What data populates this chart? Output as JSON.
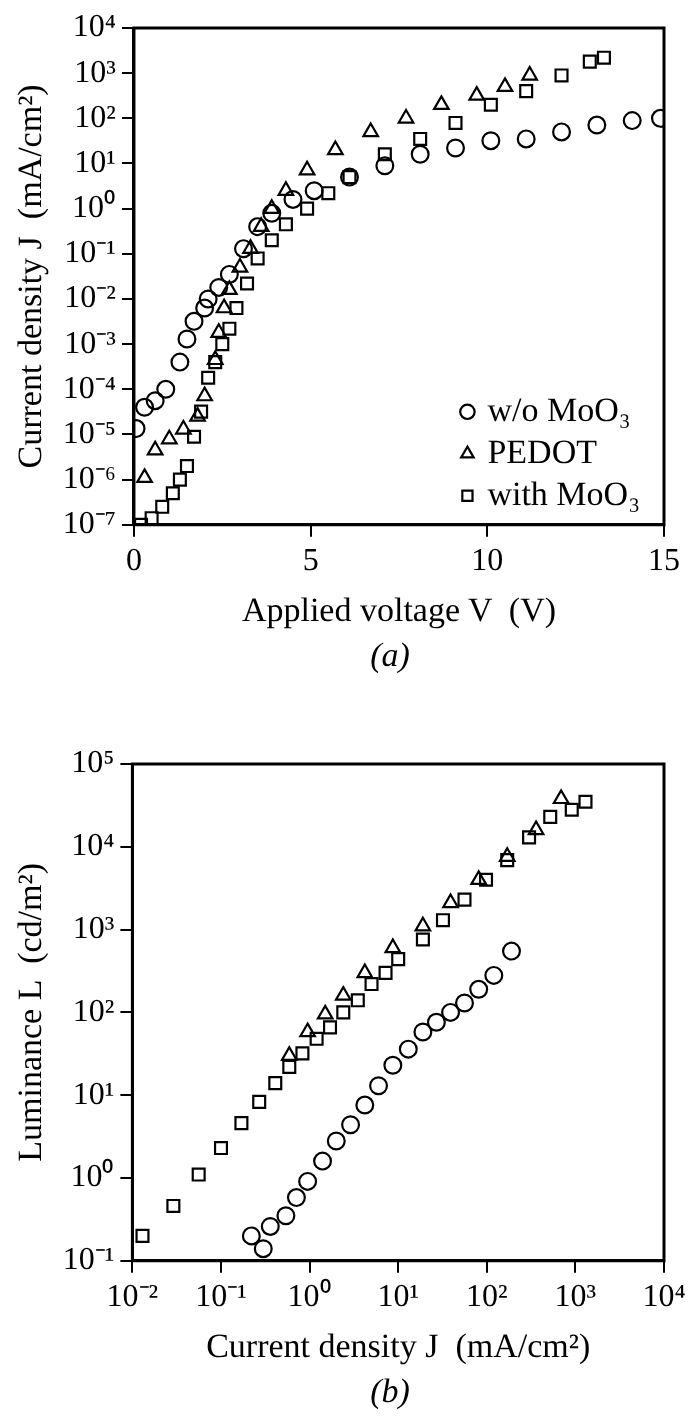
{
  "chart_data": [
    {
      "type": "scatter",
      "xlabel": "Applied voltage V  (V)",
      "ylabel": "Current density J  (mA/cm²)",
      "annotations": [
        "(a)"
      ],
      "log": "y",
      "legend": "bottom right",
      "xlim": [
        0,
        15
      ],
      "xticks": [
        0,
        5,
        10,
        15
      ],
      "ylim": [
        1e-07,
        10000
      ],
      "yticks": [
        {
          "value": 1e-07,
          "label": "10⁻⁷"
        },
        {
          "value": 1e-06,
          "label": "10⁻⁶"
        },
        {
          "value": 1e-05,
          "label": "10⁻⁵"
        },
        {
          "value": 0.0001,
          "label": "10⁻⁴"
        },
        {
          "value": 0.001,
          "label": "10⁻³"
        },
        {
          "value": 0.01,
          "label": "10⁻²"
        },
        {
          "value": 0.1,
          "label": "10⁻¹"
        },
        {
          "value": 1,
          "label": "10⁰"
        },
        {
          "value": 10,
          "label": "10¹"
        },
        {
          "value": 100,
          "label": "10²"
        },
        {
          "value": 1000,
          "label": "10³"
        },
        {
          "value": 10000,
          "label": "10⁴"
        }
      ],
      "series": [
        {
          "name": "w/o MoO₃",
          "color": "#000000",
          "marker": "circle",
          "x": [
            0.06,
            0.3,
            0.6,
            0.9,
            1.3,
            1.5,
            1.7,
            2.0,
            2.1,
            2.4,
            2.7,
            3.1,
            3.5,
            3.9,
            4.5,
            5.1,
            6.1,
            7.1,
            8.1,
            9.1,
            10.1,
            11.1,
            12.1,
            13.1,
            14.1,
            14.9
          ],
          "values": [
            1.35e-05,
            4e-05,
            5.6e-05,
            0.0001,
            0.0004,
            0.0013,
            0.0032,
            0.0063,
            0.01,
            0.018,
            0.035,
            0.13,
            0.4,
            0.79,
            1.6,
            2.5,
            5,
            8.9,
            16,
            22,
            32,
            35,
            50,
            71,
            89,
            100
          ]
        },
        {
          "name": "PEDOT",
          "color": "#000000",
          "marker": "triangle",
          "x": [
            0.3,
            0.6,
            1.0,
            1.4,
            1.8,
            2.0,
            2.3,
            2.4,
            2.55,
            2.7,
            3.0,
            3.3,
            3.6,
            3.9,
            4.3,
            4.9,
            5.7,
            6.7,
            7.7,
            8.7,
            9.7,
            10.5,
            11.2
          ],
          "values": [
            1.1e-06,
            4.5e-06,
            7.9e-06,
            1.3e-05,
            2.5e-05,
            7.1e-05,
            0.00045,
            0.0018,
            0.0063,
            0.016,
            0.05,
            0.13,
            0.4,
            1,
            2.5,
            7.1,
            20,
            50,
            100,
            200,
            320,
            500,
            890
          ]
        },
        {
          "name": "with MoO₃",
          "color": "#000000",
          "marker": "square",
          "x": [
            0.2,
            0.5,
            0.8,
            1.1,
            1.3,
            1.5,
            1.7,
            1.9,
            2.1,
            2.3,
            2.5,
            2.7,
            2.9,
            3.2,
            3.5,
            3.9,
            4.3,
            4.9,
            5.5,
            6.1,
            7.1,
            8.1,
            9.1,
            10.1,
            11.1,
            12.1,
            12.9,
            13.3
          ],
          "values": [
            1e-07,
            1.4e-07,
            2.5e-07,
            5e-07,
            1e-06,
            2e-06,
            8.9e-06,
            3.2e-05,
            0.00018,
            0.0004,
            0.001,
            0.0022,
            0.0063,
            0.022,
            0.079,
            0.2,
            0.45,
            1,
            2.2,
            5,
            16,
            35,
            79,
            200,
            400,
            890,
            1800,
            2200
          ]
        }
      ]
    },
    {
      "type": "scatter",
      "xlabel": "Current density J  (mA/cm²)",
      "ylabel": "Luminance L  (cd/m²)",
      "annotations": [
        "(b)"
      ],
      "log": "xy",
      "xlim": [
        0.01,
        10000
      ],
      "xticks": [
        {
          "value": 0.01,
          "label": "10⁻²"
        },
        {
          "value": 0.1,
          "label": "10⁻¹"
        },
        {
          "value": 1,
          "label": "10⁰"
        },
        {
          "value": 10,
          "label": "10¹"
        },
        {
          "value": 100,
          "label": "10²"
        },
        {
          "value": 1000,
          "label": "10³"
        },
        {
          "value": 10000,
          "label": "10⁴"
        }
      ],
      "ylim": [
        0.1,
        100000
      ],
      "yticks": [
        {
          "value": 0.1,
          "label": "10⁻¹"
        },
        {
          "value": 1,
          "label": "10⁰"
        },
        {
          "value": 10,
          "label": "10¹"
        },
        {
          "value": 100,
          "label": "10²"
        },
        {
          "value": 1000,
          "label": "10³"
        },
        {
          "value": 10000,
          "label": "10⁴"
        },
        {
          "value": 100000,
          "label": "10⁵"
        }
      ],
      "series": [
        {
          "color": "#000000",
          "marker": "circle",
          "x": [
            0.22,
            0.3,
            0.36,
            0.54,
            0.71,
            0.95,
            1.4,
            2.0,
            2.9,
            4.2,
            6.0,
            8.7,
            13,
            19,
            27,
            39,
            56,
            81,
            120,
            190
          ],
          "values": [
            0.2,
            0.14,
            0.26,
            0.35,
            0.58,
            0.91,
            1.6,
            2.8,
            4.4,
            7.6,
            13,
            23,
            36,
            58,
            76,
            100,
            130,
            190,
            280,
            550
          ]
        },
        {
          "color": "#000000",
          "marker": "triangle",
          "x": [
            0.59,
            0.95,
            1.5,
            2.4,
            4.2,
            8.7,
            19,
            39,
            81,
            170,
            360,
            690
          ],
          "values": [
            30,
            58,
            95,
            160,
            300,
            600,
            1100,
            2100,
            4000,
            7600,
            16000,
            38000
          ]
        },
        {
          "color": "#000000",
          "marker": "square",
          "x": [
            0.013,
            0.029,
            0.056,
            0.1,
            0.17,
            0.27,
            0.41,
            0.59,
            0.83,
            1.2,
            1.7,
            2.4,
            3.5,
            5.0,
            7.2,
            10,
            19,
            32,
            56,
            98,
            170,
            300,
            520,
            910,
            1300
          ],
          "values": [
            0.2,
            0.46,
            1.1,
            2.3,
            4.6,
            8.3,
            14,
            22,
            32,
            48,
            66,
            100,
            140,
            220,
            300,
            440,
            760,
            1300,
            2300,
            4000,
            6900,
            13000,
            23000,
            28000,
            35000
          ]
        }
      ]
    }
  ]
}
